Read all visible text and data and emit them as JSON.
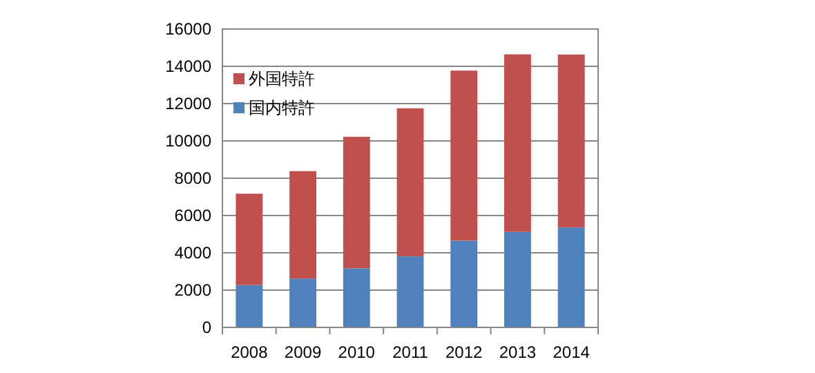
{
  "chart_data": {
    "type": "bar",
    "stacked": true,
    "categories": [
      "2008",
      "2009",
      "2010",
      "2011",
      "2012",
      "2013",
      "2014"
    ],
    "series": [
      {
        "name": "国内特許",
        "color": "#4f81bd",
        "values": [
          2270,
          2620,
          3170,
          3810,
          4650,
          5120,
          5360
        ]
      },
      {
        "name": "外国特許",
        "color": "#c0504d",
        "values": [
          4900,
          5760,
          7050,
          7940,
          9120,
          9520,
          9270
        ]
      }
    ],
    "ylim": [
      0,
      16000
    ],
    "yticks": [
      0,
      2000,
      4000,
      6000,
      8000,
      10000,
      12000,
      14000,
      16000
    ],
    "grid": "y",
    "legend": "top left"
  }
}
